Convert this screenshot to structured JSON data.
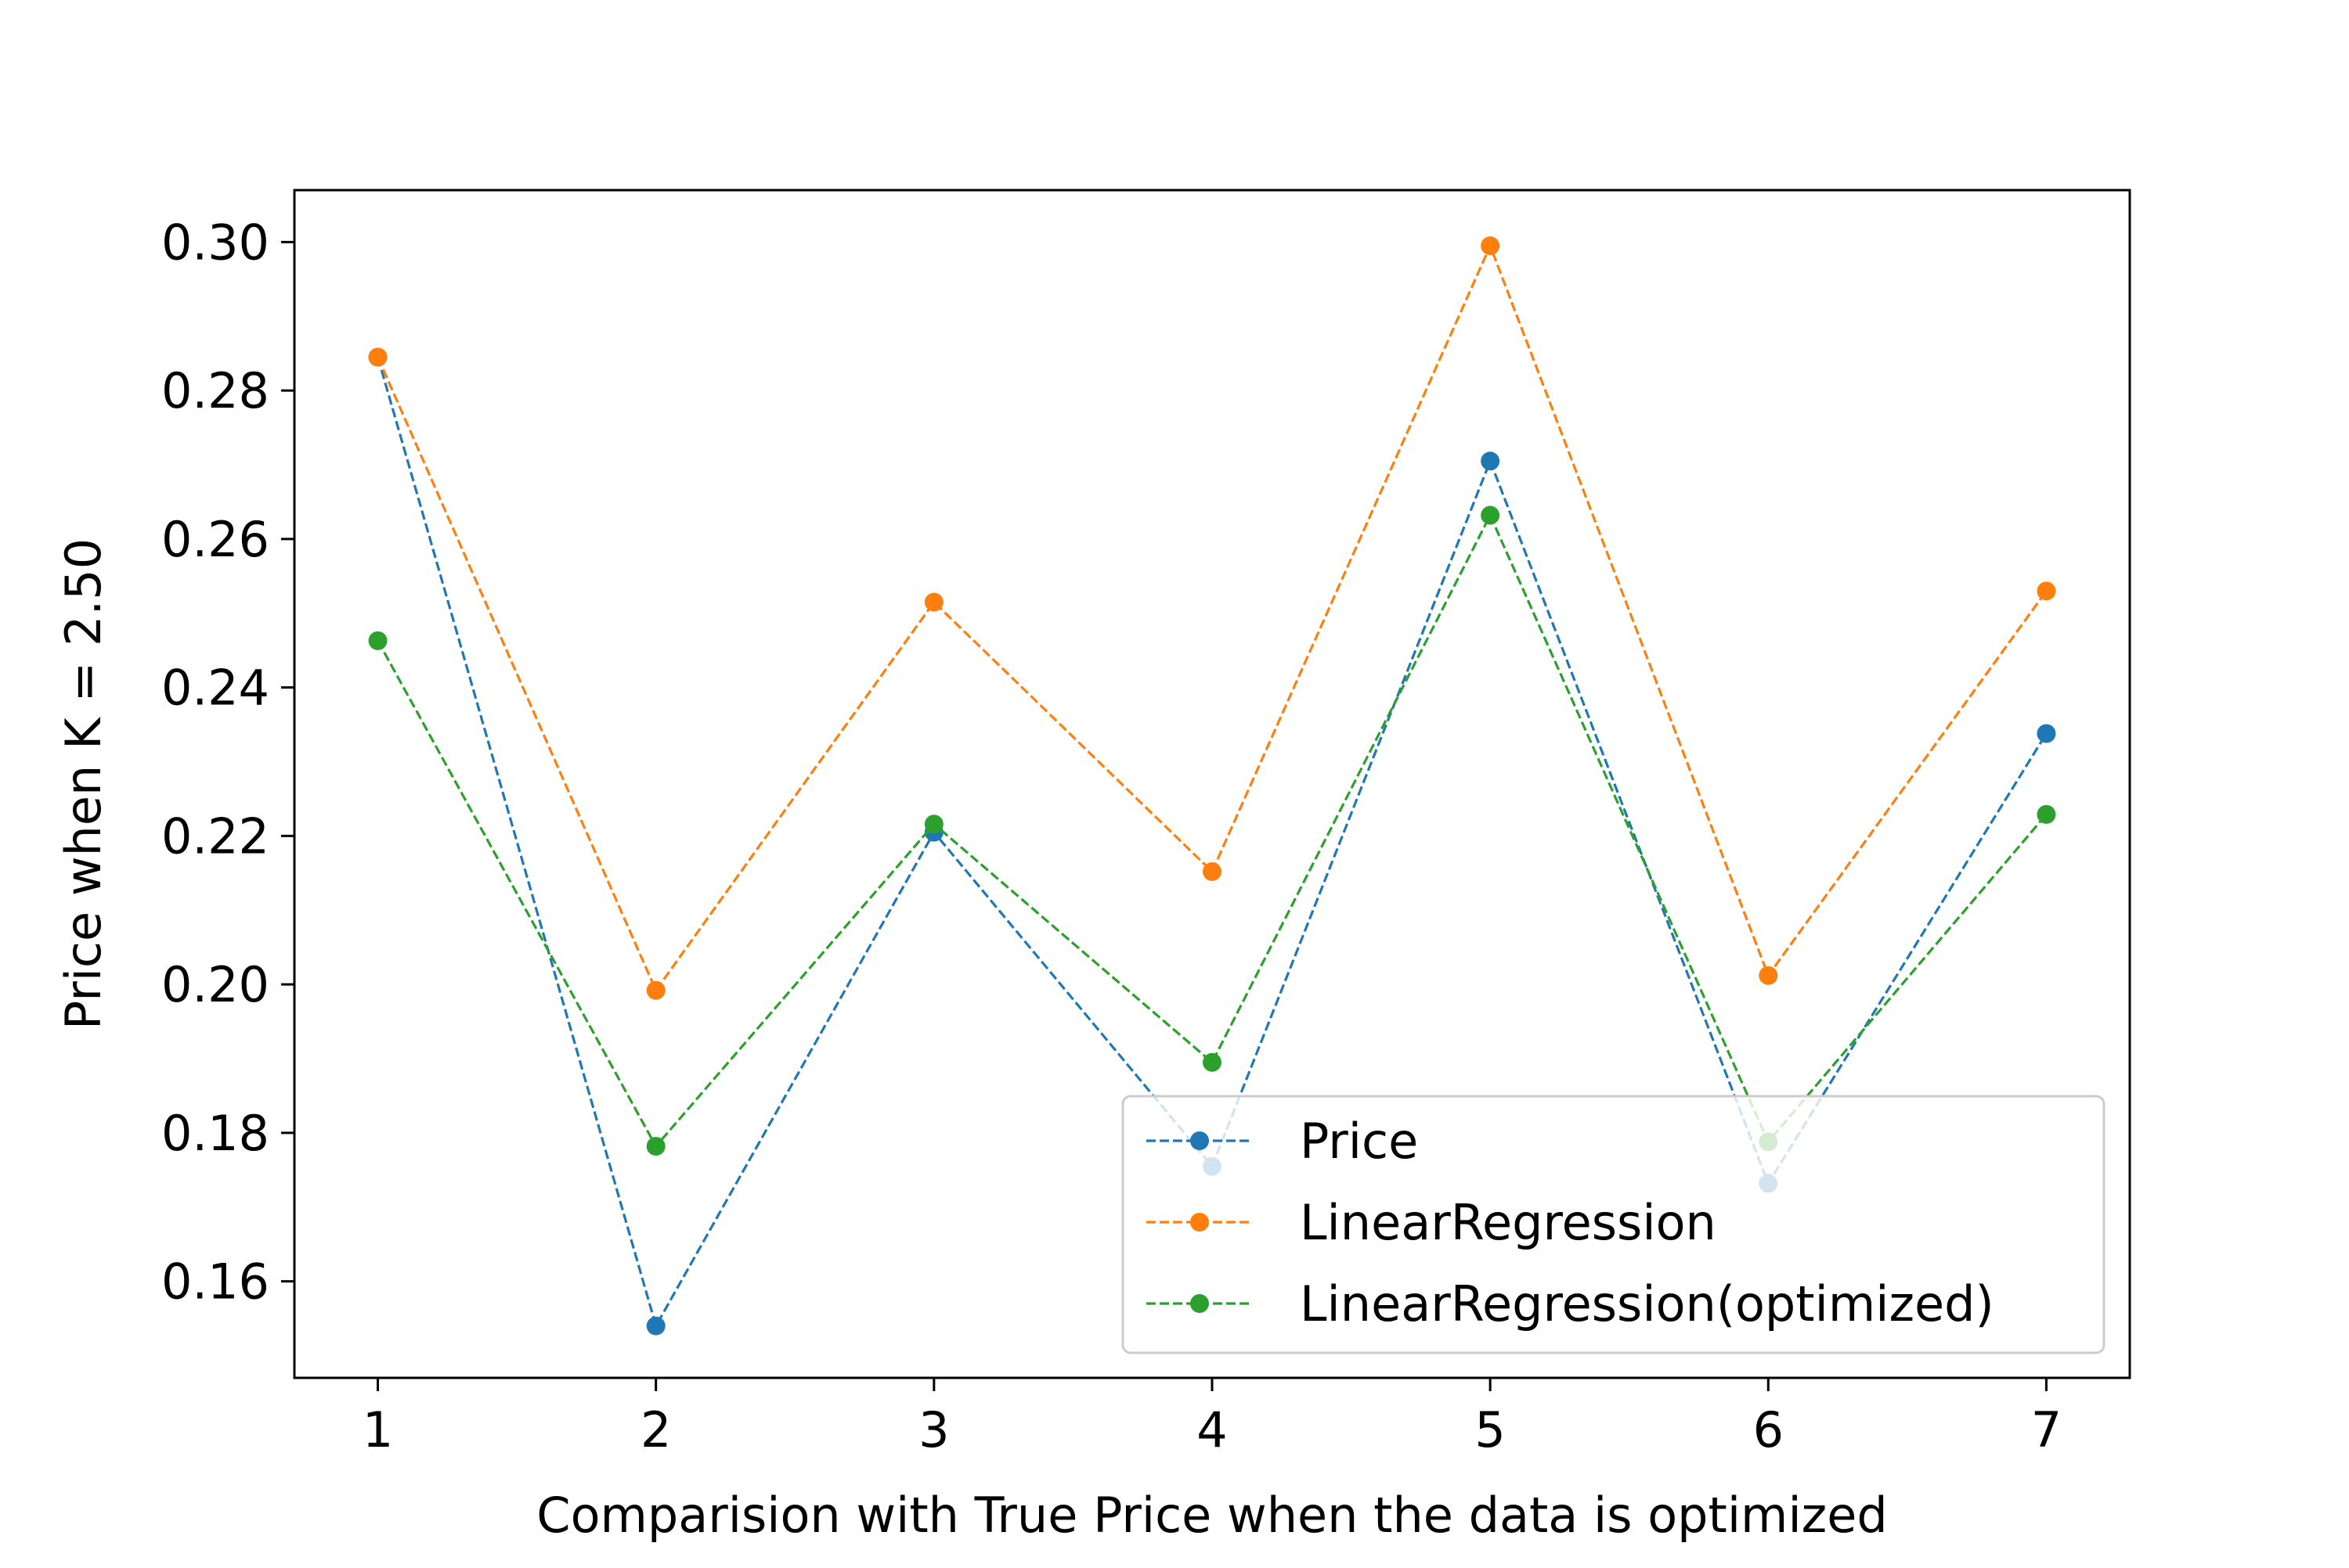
{
  "chart_data": {
    "type": "line",
    "title": "",
    "xlabel": "Comparision with True Price when the data is optimized",
    "ylabel": "Price when K = 2.50",
    "x": [
      1,
      2,
      3,
      4,
      5,
      6,
      7
    ],
    "xticks": [
      "1",
      "2",
      "3",
      "4",
      "5",
      "6",
      "7"
    ],
    "xlim": [
      0.7,
      7.3
    ],
    "ylim": [
      0.147,
      0.307
    ],
    "yticks": [
      "0.16",
      "0.18",
      "0.20",
      "0.22",
      "0.24",
      "0.26",
      "0.28",
      "0.30"
    ],
    "grid": false,
    "legend_position": "lower right",
    "line_style": "dashed",
    "series": [
      {
        "name": "Price",
        "color": "#1f77b4",
        "values": [
          0.2845,
          0.154,
          0.2205,
          0.1755,
          0.2705,
          0.1732,
          0.2338
        ]
      },
      {
        "name": "LinearRegression",
        "color": "#ff7f0e",
        "values": [
          0.2845,
          0.1992,
          0.2515,
          0.2152,
          0.2995,
          0.2012,
          0.253
        ]
      },
      {
        "name": "LinearRegression(optimized)",
        "color": "#2ca02c",
        "values": [
          0.2463,
          0.1782,
          0.2216,
          0.1895,
          0.2632,
          0.1788,
          0.2229
        ]
      }
    ]
  }
}
